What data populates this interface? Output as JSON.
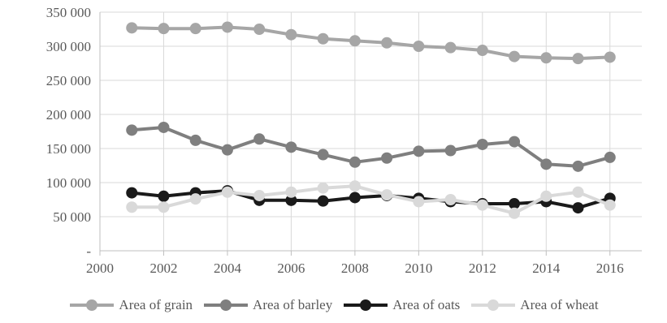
{
  "chart_data": {
    "type": "line",
    "title": "",
    "xlabel": "",
    "ylabel": "",
    "x": [
      2001,
      2002,
      2003,
      2004,
      2005,
      2006,
      2007,
      2008,
      2009,
      2010,
      2011,
      2012,
      2013,
      2014,
      2015,
      2016
    ],
    "xlim": [
      2000,
      2017
    ],
    "ylim": [
      0,
      350000
    ],
    "x_ticks": [
      2000,
      2002,
      2004,
      2006,
      2008,
      2010,
      2012,
      2014,
      2016
    ],
    "x_tick_labels": [
      "2000",
      "2002",
      "2004",
      "2006",
      "2008",
      "2010",
      "2012",
      "2014",
      "2016"
    ],
    "y_ticks": [
      0,
      50000,
      100000,
      150000,
      200000,
      250000,
      300000,
      350000
    ],
    "y_tick_labels": [
      "-",
      "50 000",
      "100 000",
      "150 000",
      "200 000",
      "250 000",
      "300 000",
      "350 000"
    ],
    "grid": true,
    "legend_position": "bottom",
    "series": [
      {
        "name": "Area of grain",
        "color": "#a6a6a6",
        "values": [
          327000,
          326000,
          326000,
          328000,
          325000,
          317000,
          311000,
          308000,
          305000,
          300000,
          298000,
          294000,
          285000,
          283000,
          282000,
          284000
        ]
      },
      {
        "name": "Area of barley",
        "color": "#7f7f7f",
        "values": [
          177000,
          181000,
          162000,
          148000,
          164000,
          152000,
          141000,
          130000,
          136000,
          146000,
          147000,
          156000,
          160000,
          127000,
          124000,
          137000
        ]
      },
      {
        "name": "Area of oats",
        "color": "#1a1a1a",
        "values": [
          85000,
          80000,
          85000,
          88000,
          74000,
          74000,
          73000,
          78000,
          81000,
          77000,
          72000,
          69000,
          69000,
          72000,
          63000,
          77000
        ]
      },
      {
        "name": "Area of wheat",
        "color": "#d9d9d9",
        "values": [
          64000,
          64000,
          76000,
          86000,
          81000,
          86000,
          92000,
          95000,
          82000,
          72000,
          75000,
          67000,
          55000,
          80000,
          86000,
          67000
        ]
      }
    ]
  }
}
